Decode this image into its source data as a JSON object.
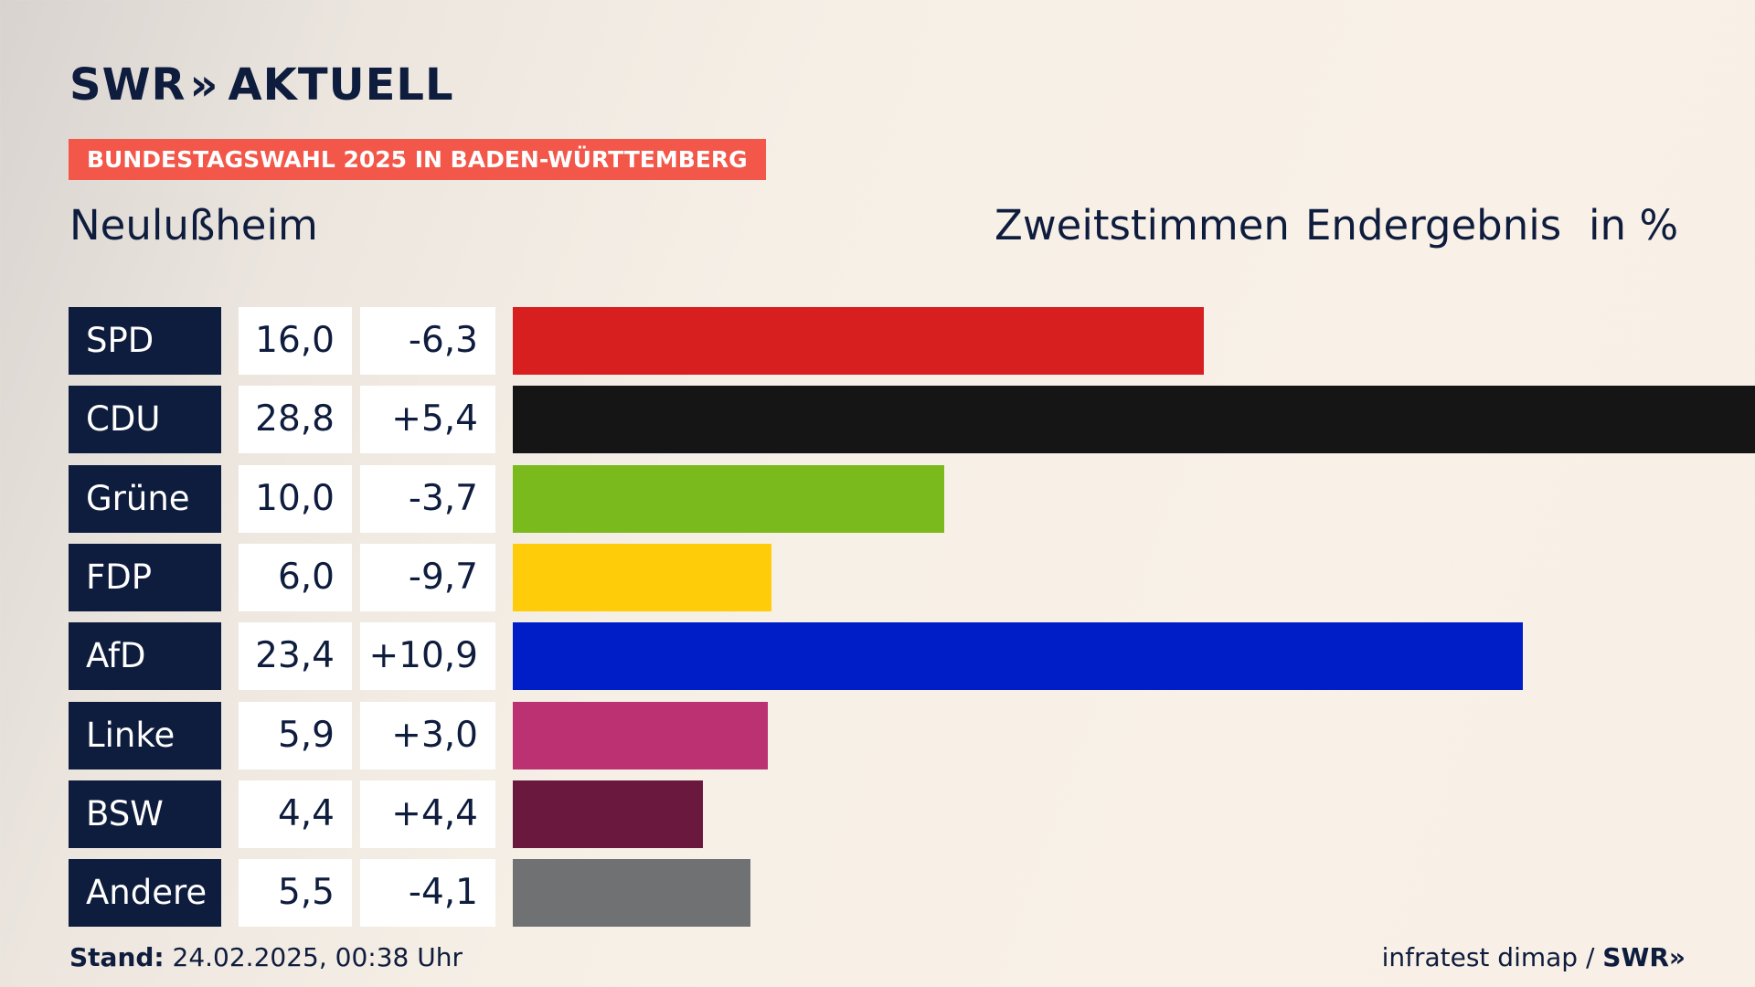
{
  "brand": {
    "swr": "SWR",
    "chevrons": "»",
    "aktuell": "AKTUELL"
  },
  "banner": "BUNDESTAGSWAHL 2025 IN BADEN-WÜRTTEMBERG",
  "place": "Neulußheim",
  "header": {
    "votes": "Zweitstimmen",
    "result": "Endergebnis",
    "unit": "in %"
  },
  "chart_data": {
    "type": "bar",
    "orientation": "horizontal",
    "categories": [
      "SPD",
      "CDU",
      "Grüne",
      "FDP",
      "AfD",
      "Linke",
      "BSW",
      "Andere"
    ],
    "values": [
      16.0,
      28.8,
      10.0,
      6.0,
      23.4,
      5.9,
      4.4,
      5.5
    ],
    "value_labels": [
      "16,0",
      "28,8",
      "10,0",
      "6,0",
      "23,4",
      "5,9",
      "4,4",
      "5,5"
    ],
    "diff_labels": [
      "-6,3",
      "+5,4",
      "-3,7",
      "-9,7",
      "+10,9",
      "+3,0",
      "+4,4",
      "-4,1"
    ],
    "colors": [
      "#d81f1f",
      "#151515",
      "#7aba1c",
      "#ffcc0a",
      "#001ec8",
      "#bb3172",
      "#6a183e",
      "#707172"
    ],
    "xlim": [
      0,
      28.8
    ]
  },
  "footer": {
    "stand_label": "Stand:",
    "stand_value": " 24.02.2025, 00:38 Uhr",
    "source": "infratest dimap / ",
    "source_brand": "SWR»"
  }
}
